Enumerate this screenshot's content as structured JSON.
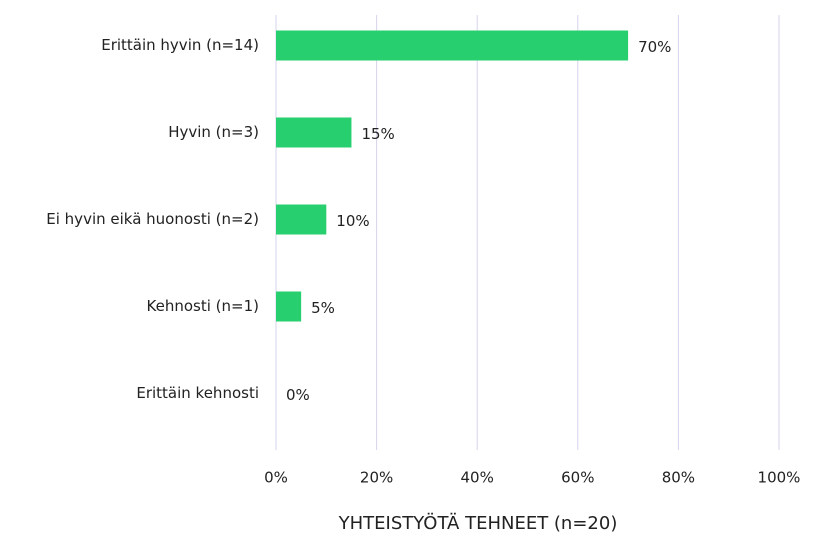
{
  "chart_data": {
    "type": "barh",
    "xlabel": "YHTEISTYÖTÄ TEHNEET (n=20)",
    "categories": [
      "Erittäin hyvin (n=14)",
      "Hyvin (n=3)",
      "Ei hyvin eikä huonosti (n=2)",
      "Kehnosti (n=1)",
      "Erittäin kehnosti"
    ],
    "values": [
      70,
      15,
      10,
      5,
      0
    ],
    "value_labels": [
      "70%",
      "15%",
      "10%",
      "5%",
      "0%"
    ],
    "color": "#27cf6e",
    "xlim": [
      0,
      100
    ],
    "xticks": [
      {
        "value": 0,
        "label": "0%"
      },
      {
        "value": 20,
        "label": "20%"
      },
      {
        "value": 40,
        "label": "40%"
      },
      {
        "value": 60,
        "label": "60%"
      },
      {
        "value": 80,
        "label": "80%"
      },
      {
        "value": 100,
        "label": "100%"
      }
    ],
    "grid": true
  }
}
